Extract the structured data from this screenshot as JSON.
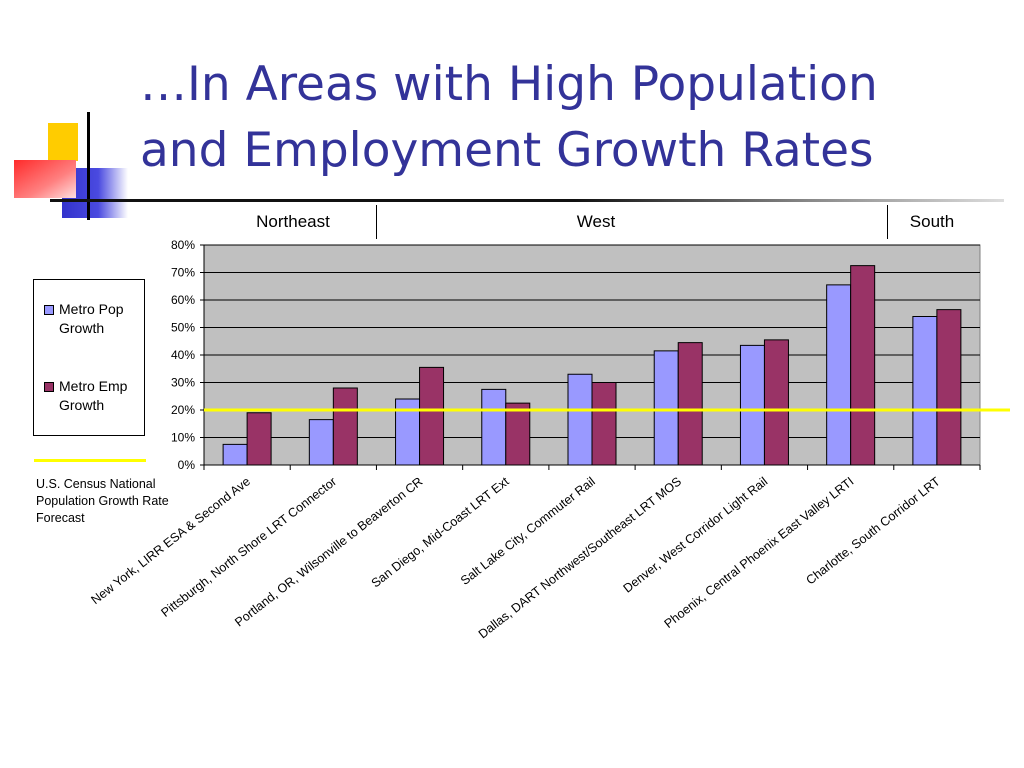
{
  "slide": {
    "title_lines": [
      "…In Areas with High Population",
      "and Employment Growth Rates"
    ],
    "regions": [
      "Northeast",
      "West",
      "South"
    ]
  },
  "legend": {
    "items": [
      {
        "label": "Metro Pop Growth",
        "color": "#9999ff"
      },
      {
        "label": "Metro Emp Growth",
        "color": "#993366"
      }
    ],
    "reference_label": "U.S. Census National Population Growth Rate Forecast",
    "reference_color": "#ffff00"
  },
  "chart_data": {
    "type": "bar",
    "categories": [
      "New York, LIRR ESA & Second Ave",
      "Pittsburgh, North Shore LRT Connector",
      "Portland, OR, Wilsonville to Beaverton CR",
      "San Diego, Mid-Coast LRT Ext",
      "Salt Lake City, Commuter Rail",
      "Dallas, DART Northwest/Southeast LRT MOS",
      "Denver, West Corridor Light Rail",
      "Phoenix, Central Phoenix East Valley LRTI",
      "Charlotte, South Corridor LRT"
    ],
    "series": [
      {
        "name": "Metro Pop Growth",
        "color": "#9999ff",
        "values": [
          7.5,
          16.5,
          24,
          27.5,
          33,
          41.5,
          43.5,
          65.5,
          54
        ]
      },
      {
        "name": "Metro Emp Growth",
        "color": "#993366",
        "values": [
          19,
          28,
          35.5,
          22.5,
          30,
          44.5,
          45.5,
          72.5,
          56.5
        ]
      }
    ],
    "reference_line": {
      "name": "U.S. Census National Population Growth Rate Forecast",
      "value": 20,
      "color": "#ffff00"
    },
    "regions": [
      {
        "name": "Northeast",
        "categories": [
          0,
          1
        ]
      },
      {
        "name": "West",
        "categories": [
          2,
          3,
          4,
          5,
          6,
          7
        ]
      },
      {
        "name": "South",
        "categories": [
          8
        ]
      }
    ],
    "ylim": [
      0,
      80
    ],
    "yticks": [
      "0%",
      "10%",
      "20%",
      "30%",
      "40%",
      "50%",
      "60%",
      "70%",
      "80%"
    ],
    "grid": true,
    "plot_background": "#c0c0c0",
    "legend_position": "left",
    "title": "",
    "xlabel": "",
    "ylabel": ""
  }
}
